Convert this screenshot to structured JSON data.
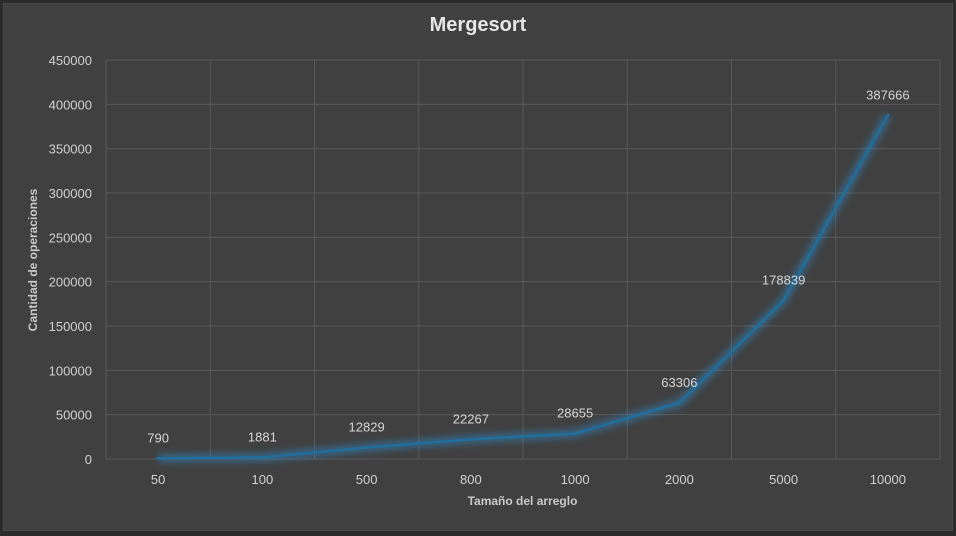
{
  "chart_data": {
    "type": "line",
    "title": "Mergesort",
    "xlabel": "Tamaño del arreglo",
    "ylabel": "Cantidad de operaciones",
    "categories": [
      "50",
      "100",
      "500",
      "800",
      "1000",
      "2000",
      "5000",
      "10000"
    ],
    "values": [
      790,
      1881,
      12829,
      22267,
      28655,
      63306,
      178839,
      387666
    ],
    "data_labels": [
      "790",
      "1881",
      "12829",
      "22267",
      "28655",
      "63306",
      "178839",
      "387666"
    ],
    "ylim": [
      0,
      450000
    ],
    "yticks": [
      "0",
      "50000",
      "100000",
      "150000",
      "200000",
      "250000",
      "300000",
      "350000",
      "400000",
      "450000"
    ],
    "grid": true,
    "legend": "none",
    "line_color": "#1f6e9c",
    "background": "#404040"
  }
}
